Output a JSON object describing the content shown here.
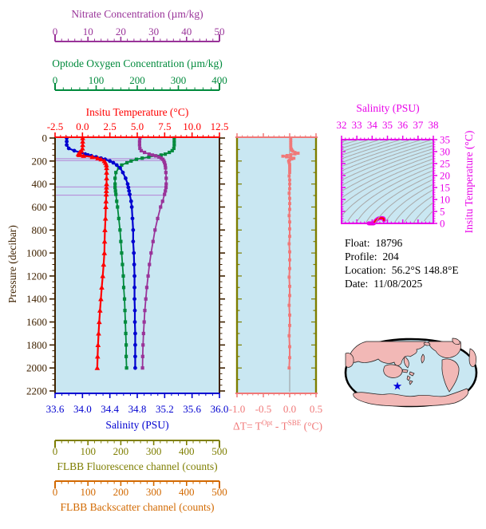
{
  "colors": {
    "nitrate": "#993399",
    "oxygen": "#008A3C",
    "temperature": "#FF0000",
    "salinity": "#0000D0",
    "pressure": "#3F2200",
    "fluorescence": "#7E7E00",
    "backscatter": "#D26900",
    "delta_t": "#F07878",
    "ts_frame": "#E800E8",
    "plot_background": "#C9E7F2",
    "contour_gray": "#A8A8A8",
    "sample_lines": "#B583D6",
    "zero_line": "#999999",
    "map_land": "#F2B8B6",
    "map_outline": "#000000",
    "marker_star": "#0000DD",
    "info_text": "#000000"
  },
  "info_panel": {
    "rows": [
      {
        "label": "Float:",
        "value": "18796"
      },
      {
        "label": "Profile:",
        "value": "204"
      },
      {
        "label": "Location:",
        "value": "56.2°S  148.8°E"
      },
      {
        "label": "Date:",
        "value": "11/08/2025"
      }
    ]
  },
  "chart_data": {
    "profile_plot": {
      "type": "line",
      "description": "Vertical ocean profiles vs pressure, multiple offset x axes",
      "grid": false,
      "y_axis": {
        "label": "Pressure (decibar)",
        "range": [
          0,
          2200
        ],
        "tick_labels": [
          "0",
          "200",
          "400",
          "600",
          "800",
          "1000",
          "1200",
          "1400",
          "1600",
          "1800",
          "2000",
          "2200"
        ],
        "minor_step": 50
      },
      "x_axes": [
        {
          "id": "nitrate",
          "label": "Nitrate Concentration (µm/kg)",
          "range": [
            0,
            50
          ],
          "tick_labels": [
            "0",
            "10",
            "20",
            "30",
            "40",
            "50"
          ],
          "minor_step": 2,
          "position": "top-offset-2"
        },
        {
          "id": "oxygen",
          "label": "Optode Oxygen Concentration (µm/kg)",
          "range": [
            0,
            400
          ],
          "tick_labels": [
            "0",
            "100",
            "200",
            "300",
            "400"
          ],
          "minor_step": 20,
          "position": "top-offset-1"
        },
        {
          "id": "temperature",
          "label": "Insitu Temperature (°C)",
          "range": [
            -2.5,
            12.5
          ],
          "tick_labels": [
            "-2.5",
            "0.0",
            "2.5",
            "5.0",
            "7.5",
            "10.0",
            "12.5"
          ],
          "minor_step": 0.5,
          "position": "top"
        },
        {
          "id": "salinity",
          "label": "Salinity (PSU)",
          "range": [
            33.6,
            36.0
          ],
          "tick_labels": [
            "33.6",
            "34.0",
            "34.4",
            "34.8",
            "35.2",
            "35.6",
            "36.0"
          ],
          "minor_step": 0.1,
          "position": "bottom"
        },
        {
          "id": "fluorescence",
          "label": "FLBB Fluorescence channel (counts)",
          "range": [
            0,
            500
          ],
          "tick_labels": [
            "0",
            "100",
            "200",
            "300",
            "400",
            "500"
          ],
          "minor_step": 20,
          "position": "bottom-offset-1"
        },
        {
          "id": "backscatter",
          "label": "FLBB Backscatter channel (counts)",
          "range": [
            0,
            500
          ],
          "tick_labels": [
            "0",
            "100",
            "200",
            "300",
            "400",
            "500"
          ],
          "minor_step": 20,
          "position": "bottom-offset-2"
        }
      ],
      "pressure": [
        0,
        30,
        60,
        90,
        110,
        125,
        140,
        148,
        155,
        165,
        175,
        185,
        200,
        215,
        235,
        260,
        300,
        350,
        400,
        430,
        460,
        490,
        550,
        600,
        700,
        800,
        900,
        1000,
        1100,
        1200,
        1300,
        1400,
        1500,
        1600,
        1700,
        1800,
        1900,
        2000
      ],
      "series": [
        {
          "name": "temperature",
          "axis": "temperature",
          "marker": "triangle",
          "values": [
            0.02,
            0.02,
            0.02,
            0.0,
            -0.1,
            -0.25,
            -0.38,
            -0.3,
            0.1,
            0.9,
            1.4,
            1.7,
            2.0,
            2.1,
            2.18,
            2.2,
            2.2,
            2.2,
            2.2,
            2.19,
            2.18,
            2.17,
            2.15,
            2.13,
            2.1,
            2.05,
            2.02,
            2.0,
            1.93,
            1.85,
            1.76,
            1.68,
            1.6,
            1.53,
            1.47,
            1.42,
            1.38,
            1.35
          ]
        },
        {
          "name": "salinity",
          "axis": "salinity",
          "marker": "circle",
          "values": [
            33.77,
            33.77,
            33.77,
            33.8,
            33.88,
            33.96,
            34.04,
            34.08,
            34.13,
            34.2,
            34.27,
            34.33,
            34.4,
            34.45,
            34.5,
            34.55,
            34.59,
            34.63,
            34.66,
            34.67,
            34.68,
            34.69,
            34.71,
            34.72,
            34.73,
            34.74,
            34.74,
            34.75,
            34.755,
            34.76,
            34.76,
            34.76,
            34.765,
            34.765,
            34.77,
            34.77,
            34.77,
            34.77
          ]
        },
        {
          "name": "oxygen",
          "axis": "oxygen",
          "marker": "square",
          "values": [
            290,
            290,
            290,
            289,
            285,
            278,
            268,
            258,
            245,
            228,
            212,
            198,
            185,
            175,
            162,
            155,
            148,
            146,
            146,
            146,
            147,
            148,
            150,
            152,
            155,
            158,
            160,
            162,
            164,
            166,
            167,
            169,
            170,
            171,
            172,
            173,
            173,
            174
          ]
        },
        {
          "name": "nitrate",
          "axis": "nitrate",
          "marker": "square",
          "values": [
            25.8,
            25.7,
            25.7,
            25.8,
            26.2,
            27.2,
            28.6,
            29.6,
            30.6,
            31.6,
            32.3,
            32.8,
            33.1,
            33.3,
            33.5,
            33.6,
            33.7,
            33.8,
            33.8,
            33.75,
            33.55,
            33.3,
            32.7,
            32.1,
            31.2,
            30.4,
            29.8,
            29.2,
            28.7,
            28.3,
            27.9,
            27.6,
            27.3,
            27.1,
            26.9,
            26.75,
            26.65,
            26.6
          ]
        }
      ],
      "sample_lines_pressures": [
        180,
        196,
        425,
        497
      ]
    },
    "delta_t_panel": {
      "type": "scatter",
      "x_axis": {
        "label_parts": [
          [
            "t",
            "ΔT= T"
          ],
          [
            "sup",
            "Opt"
          ],
          [
            "t",
            " - T"
          ],
          [
            "sup",
            "SBE"
          ],
          [
            "t",
            " (°C)"
          ]
        ],
        "range": [
          -1.0,
          0.5
        ],
        "tick_labels": [
          "-1.0",
          "-0.5",
          "0.0",
          "0.5"
        ],
        "minor_step": 0.1
      },
      "y_axis": {
        "range": [
          0,
          2200
        ],
        "shared_with": "profile_plot"
      },
      "zero_reference_line": 0.0,
      "pressure": [
        0,
        20,
        40,
        60,
        80,
        95,
        105,
        115,
        125,
        132,
        138,
        145,
        152,
        158,
        164,
        170,
        176,
        182,
        190,
        200,
        215,
        230,
        250,
        275,
        300,
        330,
        365,
        400,
        440,
        480,
        525,
        570,
        620,
        675,
        730,
        790,
        855,
        920,
        990,
        1060,
        1135,
        1210,
        1290,
        1370,
        1455,
        1540,
        1630,
        1720,
        1815,
        1910,
        2000
      ],
      "values": [
        0.02,
        0.02,
        0.02,
        0.02,
        0.02,
        0.03,
        0.04,
        0.06,
        0.1,
        0.16,
        0.1,
        0.02,
        -0.05,
        -0.13,
        -0.06,
        0.02,
        0.08,
        0.04,
        0.0,
        -0.02,
        -0.01,
        0.0,
        0.0,
        0.0,
        0.0,
        -0.01,
        0.0,
        0.0,
        0.0,
        -0.01,
        0.0,
        0.0,
        0.0,
        -0.01,
        0.0,
        0.0,
        0.0,
        -0.01,
        0.0,
        0.0,
        0.0,
        -0.01,
        0.0,
        0.0,
        -0.01,
        0.0,
        0.0,
        -0.01,
        0.0,
        0.0,
        -0.01
      ]
    },
    "ts_diagram": {
      "type": "line",
      "x_axis": {
        "label": "Salinity (PSU)",
        "range": [
          32,
          38
        ],
        "tick_labels": [
          "32",
          "33",
          "34",
          "35",
          "36",
          "37",
          "38"
        ],
        "minor_step": 0.25
      },
      "y_axis": {
        "label": "Insitu Temperature (°C)",
        "range": [
          0,
          35
        ],
        "tick_labels": [
          "0",
          "5",
          "10",
          "15",
          "20",
          "25",
          "30",
          "35"
        ],
        "minor_step": 1
      },
      "density_contours": {
        "sigma_theta_min": 18,
        "sigma_theta_max": 30,
        "step": 0.5
      },
      "profile_curve": "salinity vs temperature from profile_plot series"
    },
    "world_map": {
      "type": "map",
      "projection": "global-oval, Pacific centered",
      "marker": {
        "symbol": "star",
        "approx_location": "56.2S 148.8E (south of Australia)"
      }
    }
  }
}
